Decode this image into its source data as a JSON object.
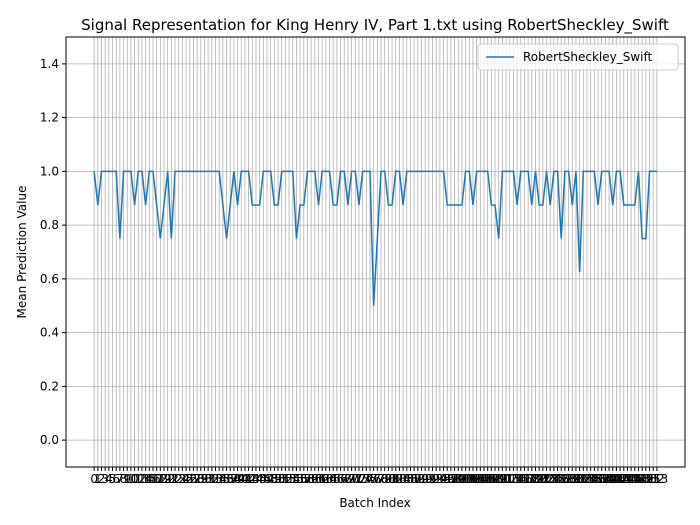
{
  "chart_data": {
    "type": "line",
    "title": "Signal Representation for King Henry IV, Part 1.txt using RobertSheckley_Swift",
    "x_label": "Batch Index",
    "y_label": "Mean Prediction Value",
    "x": [
      0,
      1,
      2,
      3,
      4,
      5,
      6,
      7,
      8,
      9,
      10,
      11,
      12,
      13,
      14,
      15,
      16,
      17,
      18,
      19,
      20,
      21,
      22,
      23,
      24,
      25,
      26,
      27,
      28,
      29,
      30,
      31,
      32,
      33,
      34,
      35,
      36,
      37,
      38,
      39,
      40,
      41,
      42,
      43,
      44,
      45,
      46,
      47,
      48,
      49,
      50,
      51,
      52,
      53,
      54,
      55,
      56,
      57,
      58,
      59,
      60,
      61,
      62,
      63,
      64,
      65,
      66,
      67,
      68,
      69,
      70,
      71,
      72,
      73,
      74,
      75,
      76,
      77,
      78,
      79,
      80,
      81,
      82,
      83,
      84,
      85,
      86,
      87,
      88,
      89,
      90,
      91,
      92,
      93,
      94,
      95,
      96,
      97,
      98,
      99,
      100,
      101,
      102,
      103,
      104,
      105,
      106,
      107,
      108,
      109,
      110,
      111,
      112,
      113,
      114,
      115,
      116,
      117,
      118,
      119,
      120,
      121,
      122,
      123,
      124,
      125,
      126,
      127,
      128,
      129,
      130,
      131,
      132,
      133,
      134,
      135,
      136,
      137,
      138,
      139,
      140,
      141,
      142,
      143,
      144,
      145,
      146,
      147,
      148,
      149,
      150,
      151,
      152,
      153
    ],
    "series": [
      {
        "name": "RobertSheckley_Swift",
        "color": "#1f77b4",
        "values": [
          1,
          0.875,
          1,
          1,
          1,
          1,
          1,
          0.75,
          1,
          1,
          1,
          0.875,
          1,
          1,
          0.875,
          1,
          1,
          0.875,
          0.75,
          0.875,
          1,
          0.75,
          1,
          1,
          1,
          1,
          1,
          1,
          1,
          1,
          1,
          1,
          1,
          1,
          1,
          0.875,
          0.75,
          0.875,
          1,
          0.875,
          1,
          1,
          1,
          0.875,
          0.875,
          0.875,
          1,
          1,
          1,
          0.875,
          0.875,
          1,
          1,
          1,
          1,
          0.75,
          0.875,
          0.875,
          1,
          1,
          1,
          0.875,
          1,
          1,
          1,
          0.875,
          0.875,
          1,
          1,
          0.875,
          1,
          1,
          0.875,
          1,
          1,
          1,
          0.5,
          0.75,
          1,
          1,
          0.875,
          0.875,
          1,
          1,
          0.875,
          1,
          1,
          1,
          1,
          1,
          1,
          1,
          1,
          1,
          1,
          1,
          0.875,
          0.875,
          0.875,
          0.875,
          0.875,
          1,
          1,
          0.875,
          1,
          1,
          1,
          1,
          0.875,
          0.875,
          0.75,
          1,
          1,
          1,
          1,
          0.875,
          1,
          1,
          1,
          0.875,
          1,
          0.875,
          0.875,
          1,
          0.875,
          1,
          1,
          0.75,
          1,
          1,
          0.875,
          1,
          0.625,
          1,
          1,
          1,
          1,
          0.875,
          1,
          1,
          1,
          0.875,
          1,
          1,
          0.875,
          0.875,
          0.875,
          0.875,
          1,
          0.75,
          0.75,
          1,
          1,
          1
        ]
      }
    ],
    "xlim": [
      -7.65,
      160.65
    ],
    "ylim": [
      -0.1,
      1.5
    ],
    "yticks": [
      {
        "value": 0,
        "label": "0.0"
      },
      {
        "value": 0.2,
        "label": "0.2"
      },
      {
        "value": 0.4,
        "label": "0.4"
      },
      {
        "value": 0.6,
        "label": "0.6"
      },
      {
        "value": 0.8,
        "label": "0.8"
      },
      {
        "value": 1,
        "label": "1.0"
      },
      {
        "value": 1.2,
        "label": "1.2"
      },
      {
        "value": 1.4,
        "label": "1.4"
      }
    ],
    "grid": true,
    "legend": "upper right"
  }
}
